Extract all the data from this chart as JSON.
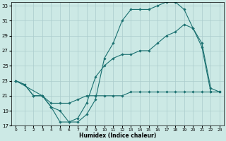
{
  "xlabel": "Humidex (Indice chaleur)",
  "bg_color": "#cce9e5",
  "grid_color": "#aacccc",
  "line_color": "#1a7070",
  "xlim_min": -0.5,
  "xlim_max": 23.5,
  "ylim_min": 17,
  "ylim_max": 33.5,
  "xticks": [
    0,
    1,
    2,
    3,
    4,
    5,
    6,
    7,
    8,
    9,
    10,
    11,
    12,
    13,
    14,
    15,
    16,
    17,
    18,
    19,
    20,
    21,
    22,
    23
  ],
  "yticks": [
    17,
    19,
    21,
    23,
    25,
    27,
    29,
    31,
    33
  ],
  "line1_x": [
    0,
    1,
    2,
    3,
    4,
    5,
    6,
    7,
    8,
    9,
    10,
    11,
    12,
    13,
    14,
    15,
    16,
    17,
    18,
    19,
    20,
    21,
    22,
    23
  ],
  "line1_y": [
    23,
    22.5,
    21,
    21,
    20,
    20,
    20,
    20.5,
    21,
    21,
    21,
    21,
    21,
    21.5,
    21.5,
    21.5,
    21.5,
    21.5,
    21.5,
    21.5,
    21.5,
    21.5,
    21.5,
    21.5
  ],
  "line2_x": [
    0,
    1,
    2,
    3,
    4,
    5,
    6,
    7,
    8,
    9,
    10,
    11,
    12,
    13,
    14,
    15,
    16,
    17,
    18,
    19,
    20,
    21,
    22,
    23
  ],
  "line2_y": [
    23,
    22.5,
    21,
    21,
    19.5,
    17.5,
    17.5,
    18,
    20,
    23.5,
    25,
    26,
    26.5,
    26.5,
    27,
    27,
    28,
    29,
    29.5,
    30.5,
    30,
    27.5,
    21.5,
    21.5
  ],
  "line3_x": [
    0,
    3,
    4,
    5,
    6,
    7,
    8,
    9,
    10,
    11,
    12,
    13,
    14,
    15,
    16,
    17,
    18,
    19,
    20,
    21,
    22,
    23
  ],
  "line3_y": [
    23,
    21,
    19.5,
    19,
    17.5,
    17.5,
    18.5,
    20.5,
    26,
    28,
    31,
    32.5,
    32.5,
    32.5,
    33,
    33.5,
    33.5,
    32.5,
    30,
    28,
    22,
    21.5
  ]
}
